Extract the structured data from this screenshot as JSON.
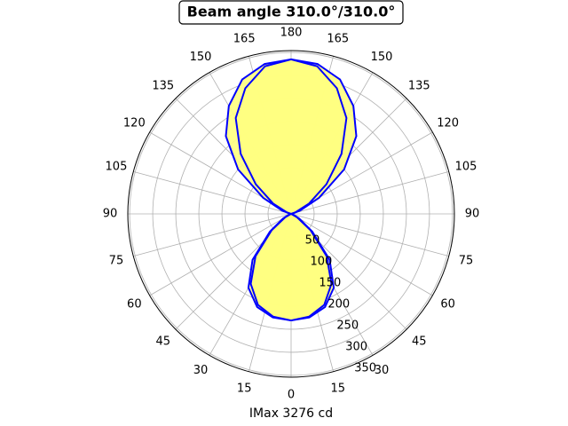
{
  "chart_data": {
    "type": "polar",
    "title": "Beam angle 310.0°/310.0°",
    "x_label": "IMax 3276 cd",
    "theta": [
      0,
      10,
      20,
      30,
      40,
      50,
      60,
      70,
      80,
      90,
      100,
      110,
      120,
      130,
      140,
      150,
      160,
      170,
      180,
      190,
      200,
      210,
      220,
      230,
      240,
      250,
      260,
      270,
      280,
      290,
      300,
      310,
      320,
      330,
      340,
      350,
      360
    ],
    "series": [
      {
        "color": "#0000ff",
        "values": [
          231,
          228,
          215,
          185,
          130,
          60,
          20,
          5,
          0,
          0,
          0,
          20,
          70,
          150,
          220,
          270,
          310,
          330,
          335,
          330,
          310,
          270,
          220,
          150,
          70,
          20,
          0,
          0,
          0,
          5,
          20,
          60,
          130,
          185,
          215,
          228,
          231
        ]
      },
      {
        "color": "#0000ff",
        "values": [
          231,
          226,
          210,
          175,
          120,
          55,
          15,
          0,
          0,
          0,
          0,
          10,
          45,
          100,
          170,
          240,
          290,
          325,
          335,
          325,
          290,
          240,
          170,
          100,
          45,
          10,
          0,
          0,
          0,
          0,
          15,
          55,
          120,
          175,
          210,
          226,
          231
        ]
      }
    ],
    "fill_color": "#ffff80",
    "rlim": [
      0,
      354
    ],
    "rticks": [
      50,
      100,
      150,
      200,
      250,
      300,
      350
    ],
    "thetaticks": [
      0,
      15,
      30,
      45,
      60,
      75,
      90,
      105,
      120,
      135,
      150,
      165,
      180,
      {
        "value": 195,
        "label": "165"
      },
      {
        "value": 210,
        "label": "150"
      },
      {
        "value": 225,
        "label": "135"
      },
      {
        "value": 240,
        "label": "120"
      },
      {
        "value": 255,
        "label": "105"
      },
      {
        "value": 270,
        "label": "90"
      },
      {
        "value": 285,
        "label": "75"
      },
      {
        "value": 300,
        "label": "60"
      },
      {
        "value": 315,
        "label": "45"
      },
      {
        "value": 330,
        "label": "30"
      },
      {
        "value": 345,
        "label": "15"
      }
    ],
    "grid": true
  }
}
